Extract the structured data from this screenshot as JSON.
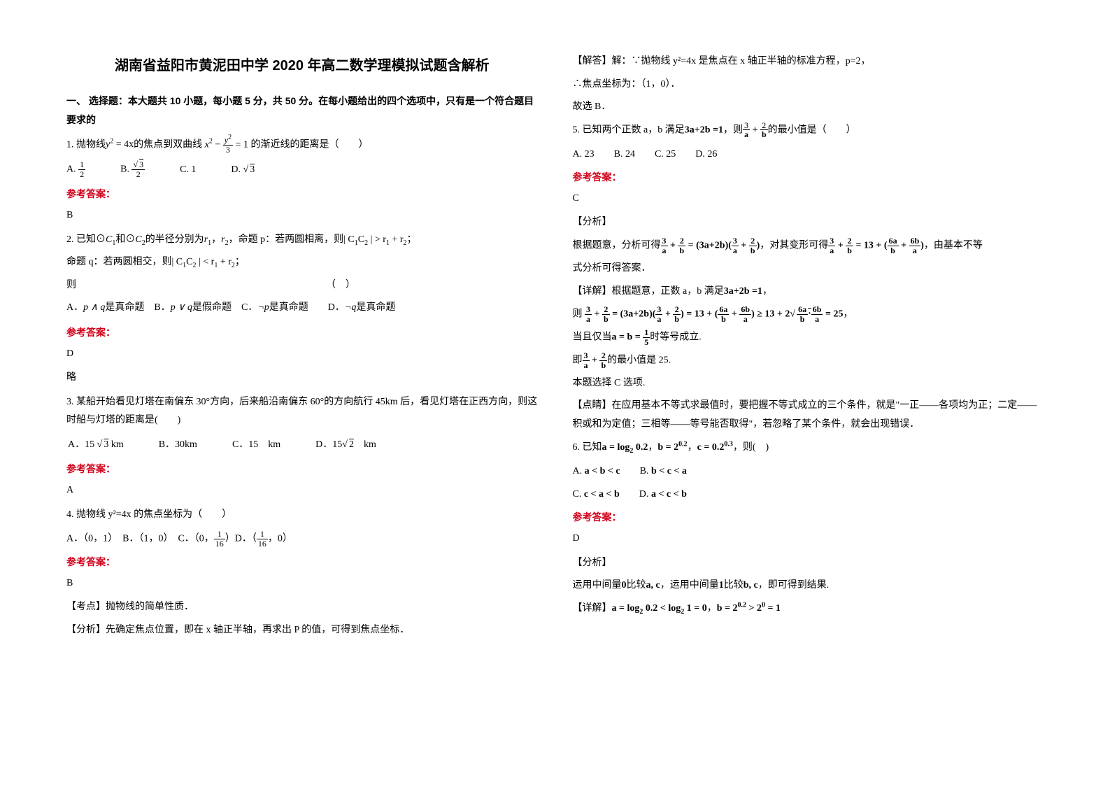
{
  "title": "湖南省益阳市黄泥田中学 2020 年高二数学理模拟试题含解析",
  "sectionHead": "一、 选择题：本大题共 10 小题，每小题 5 分，共 50 分。在每小题给出的四个选项中，只有是一个符合题目要求的",
  "ansLabel": "参考答案：",
  "q1": {
    "text_a": "1. 抛物线",
    "f1_a": "y",
    "f1_b": "2",
    "f1_c": " = 4x",
    "text_b": "的焦点到双曲线",
    "f2_a": "x",
    "f2_b": "2",
    "f2_c": " − ",
    "f2_top": "y",
    "f2_sup": "2",
    "f2_bot": "3",
    "f2_d": " = 1",
    "text_c": "的渐近线的距离是（　　）",
    "optA_pre": "A. ",
    "optA_top": "1",
    "optA_bot": "2",
    "optB_pre": "B. ",
    "optB_root": "√",
    "optB_top": "3",
    "optB_bot": "2",
    "optC_pre": "C. ",
    "optC": "1",
    "optD_pre": "D. ",
    "optD_root": "√",
    "optD_val": "3",
    "ans": "B"
  },
  "q2": {
    "text_a": "2. 已知⊙",
    "c1_a": "C",
    "c1_b": "1",
    "text_b": "和⊙",
    "c2_a": "C",
    "c2_b": "2",
    "text_c": "的半径分别为",
    "r1_a": "r",
    "r1_b": "1",
    "comma": "，",
    "r2_a": "r",
    "r2_b": "2",
    "text_d": "，命题 p：若两圆相离，则",
    "ineq1_a": "| C",
    "ineq1_b": "1",
    "ineq1_c": "C",
    "ineq1_d": "2",
    "ineq1_e": " | > r",
    "ineq1_f": "1",
    "ineq1_g": " + r",
    "ineq1_h": "2",
    "text_e": "；",
    "text_f": "命题 q：若两圆相交，则",
    "ineq2_a": "| C",
    "ineq2_b": "1",
    "ineq2_c": "C",
    "ineq2_d": "2",
    "ineq2_e": " | < r",
    "ineq2_f": "1",
    "ineq2_g": " + r",
    "ineq2_h": "2",
    "text_g": "；",
    "text_h": "则　　　　　　　　　　　　　　　　　　　　　　　　　　（　）",
    "optA": "A．",
    "optA_f": "p ∧ q",
    "optA_t": "是真命题　B．",
    "optB_f": "p ∨ q",
    "optB_t": "是假命题　C．",
    "optC_f": "¬p",
    "optC_t": "是真命题　　D．",
    "optD_f": "¬q",
    "optD_t": "是真命题",
    "ans": "D",
    "lue": "略"
  },
  "q3": {
    "text": "3. 某船开始看见灯塔在南偏东 30°方向，后来船沿南偏东 60°的方向航行 45km 后，看见灯塔在正西方向，则这时船与灯塔的距离是(　　)",
    "optA_pre": "A．15 ",
    "optA_r": "√",
    "optA_v": "3",
    "optA_suf": " km",
    "optB": "B．30km",
    "optC": "C．15　km",
    "optD_pre": "D．15",
    "optD_r": "√",
    "optD_v": "2",
    "optD_suf": "　km",
    "ans": "A"
  },
  "q4": {
    "text": "4. 抛物线 y²=4x 的焦点坐标为（　　）",
    "optA": "A．（0，1）　B．（1，0）　C．（0，",
    "fracC_top": "1",
    "fracC_bot": "16",
    "optC_suf": "）D．（",
    "fracD_top": "1",
    "fracD_bot": "16",
    "optD_suf": "，0）",
    "ans": "B",
    "kd": "【考点】抛物线的简单性质．",
    "fx": "【分析】先确定焦点位置，即在 x 轴正半轴，再求出 P 的值，可得到焦点坐标．"
  },
  "q4b": {
    "jd": "【解答】解：∵抛物线 y²=4x 是焦点在 x 轴正半轴的标准方程，p=2，",
    "s2": "∴焦点坐标为：（1，0）．",
    "s3": "故选 B．"
  },
  "q5": {
    "text_a": "5. 已知两个正数 a，b 满足",
    "eq": "3a+2b =1",
    "text_b": "，则",
    "frac1_top": "3",
    "frac1_bot": "a",
    "plus": " + ",
    "frac2_top": "2",
    "frac2_bot": "b",
    "text_c": "的最小值是（　　）",
    "opts": "A. 23　　B. 24　　C. 25　　D. 26",
    "ans": "C",
    "fx": "【分析】",
    "p1_a": "根据题意，分析可得",
    "p1_f": " = (3a+2b)",
    "p1_b": "，对其变形可得",
    "p1_g": " = 13 + ",
    "p1_c": "，由基本不等",
    "p2": "式分析可得答案．",
    "xj": "【详解】根据题意，正数 a，b 满足",
    "xj_eq": "3a+2b =1",
    "xj_comma": "，",
    "ze": "则",
    "big_a": " = (3a+2b)",
    "big_b": " = 13 + ",
    "big_c": " ≥ 13 + 2",
    "big_root": "√",
    "big_d": " = 25",
    "big_e": "，",
    "dqdj": "当且仅当",
    "dqdj_eq": "a = b = ",
    "dqdj_top": "1",
    "dqdj_bot": "5",
    "dqdj_suf": "时等号成立.",
    "ji": "即",
    "ji_suf": "的最小值是 25.",
    "bxz": "本题选择 C 选项.",
    "ds": "【点睛】在应用基本不等式求最值时，要把握不等式成立的三个条件，就是\"一正——各项均为正；二定——积或和为定值；三相等——等号能否取得\"，若忽略了某个条件，就会出现错误．"
  },
  "q6": {
    "text_a": "6. 已知",
    "eq_a": "a = log",
    "eq_a2": "2",
    "eq_a3": " 0.2",
    "eq_b_pre": "，",
    "eq_b": "b = 2",
    "eq_b2": "0.2",
    "eq_c_pre": "，",
    "eq_c": "c = 0.2",
    "eq_c2": "0.3",
    "text_b": "，则(　)",
    "optA_pre": "A. ",
    "optA": "a < b < c",
    "optB_pre": "　　B. ",
    "optB": "b < c < a",
    "optC_pre": "C. ",
    "optC": "c < a < b",
    "optD_pre": "　　D. ",
    "optD": "a < c < b",
    "ans": "D",
    "fx": "【分析】",
    "p1_a": "运用中间量",
    "p1_b": "0",
    "p1_c": "比较",
    "p1_d": "a, c",
    "p1_e": "，运用中间量",
    "p1_f": "1",
    "p1_g": "比较",
    "p1_h": "b, c",
    "p1_i": "，即可得到结果.",
    "xj": "【详解】",
    "xj_a": "a = log",
    "xj_a2": "2",
    "xj_a3": " 0.2 < log",
    "xj_a4": "2",
    "xj_a5": " 1 = 0",
    "xj_b_pre": "，",
    "xj_b": "b = 2",
    "xj_b2": "0.2",
    "xj_b3": " > 2",
    "xj_b4": "0",
    "xj_b5": " = 1"
  }
}
